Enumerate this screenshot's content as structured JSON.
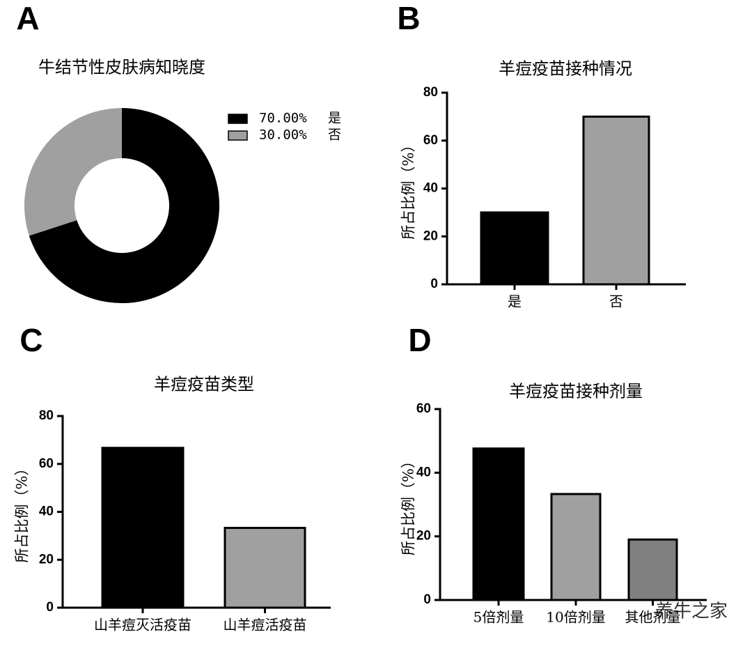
{
  "chart_data": [
    {
      "type": "pie",
      "panel": "A",
      "title": "牛结节性皮肤病知晓度",
      "categories": [
        "是",
        "否"
      ],
      "values": [
        70,
        30
      ],
      "value_labels": [
        "70.00%",
        "30.00%"
      ],
      "colors": [
        "#000000",
        "#a0a0a0"
      ],
      "donut": true
    },
    {
      "type": "bar",
      "panel": "B",
      "title": "羊痘疫苗接种情况",
      "y_label": "所占比例（%）",
      "categories": [
        "是",
        "否"
      ],
      "values": [
        30,
        70
      ],
      "colors": [
        "#000000",
        "#a0a0a0"
      ],
      "ylim": [
        0,
        80
      ],
      "yticks": [
        0,
        20,
        40,
        60,
        80
      ]
    },
    {
      "type": "bar",
      "panel": "C",
      "title": "羊痘疫苗类型",
      "y_label": "所占比例（%）",
      "categories": [
        "山羊痘灭活疫苗",
        "山羊痘活疫苗"
      ],
      "values": [
        66.7,
        33.3
      ],
      "colors": [
        "#000000",
        "#a0a0a0"
      ],
      "ylim": [
        0,
        80
      ],
      "yticks": [
        0,
        20,
        40,
        60,
        80
      ]
    },
    {
      "type": "bar",
      "panel": "D",
      "title": "羊痘疫苗接种剂量",
      "y_label": "所占比例（%）",
      "categories": [
        "5倍剂量",
        "10倍剂量",
        "其他剂量"
      ],
      "values": [
        47.6,
        33.3,
        19.0
      ],
      "colors": [
        "#000000",
        "#a0a0a0",
        "#808080"
      ],
      "ylim": [
        0,
        60
      ],
      "yticks": [
        0,
        20,
        40,
        60
      ]
    }
  ],
  "watermark": "养牛之家"
}
